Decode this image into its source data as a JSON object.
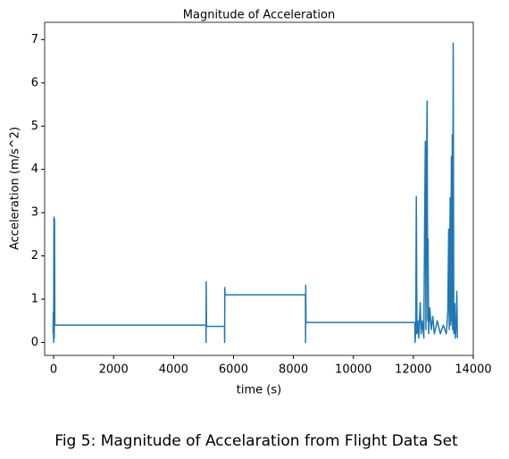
{
  "chart_data": {
    "type": "line",
    "title": "Magnitude of Acceleration",
    "xlabel": "time (s)",
    "ylabel": "Acceleration (m/s^2)",
    "caption": "Fig 5: Magnitude of Accelaration from Flight Data Set",
    "x": [
      -20,
      -10,
      0,
      10,
      20,
      30,
      40,
      5080,
      5085,
      5090,
      5100,
      5700,
      5705,
      5710,
      5720,
      8400,
      8405,
      8410,
      8420,
      12050,
      12060,
      12080,
      12100,
      12120,
      12150,
      12180,
      12230,
      12260,
      12300,
      12350,
      12380,
      12400,
      12420,
      12440,
      12460,
      12480,
      12490,
      12510,
      12550,
      12600,
      12650,
      12700,
      12800,
      12900,
      13000,
      13100,
      13150,
      13180,
      13200,
      13230,
      13250,
      13270,
      13290,
      13300,
      13310,
      13330,
      13350,
      13380,
      13400,
      13430,
      13450,
      13470
    ],
    "series": [
      {
        "color": "#1f77b4",
        "values": [
          0.2,
          0.7,
          0.0,
          2.9,
          0.1,
          2.85,
          0.4,
          0.4,
          0,
          1.4,
          0.37,
          0.37,
          0,
          1.27,
          1.1,
          1.1,
          0,
          1.32,
          0.46,
          0.46,
          0,
          0.3,
          3.37,
          0.2,
          0.5,
          0.1,
          0.92,
          0.2,
          0.5,
          0.1,
          3.0,
          4.65,
          0.3,
          4.0,
          5.58,
          0.5,
          2.4,
          0.2,
          0.8,
          0.3,
          0.6,
          0.2,
          0.5,
          0.2,
          0.4,
          0.2,
          0.7,
          2.62,
          0.3,
          3.35,
          0.4,
          4.3,
          0.5,
          4.8,
          0.3,
          6.92,
          0.2,
          0.9,
          0.1,
          0.4,
          1.18,
          0.1
        ]
      }
    ],
    "xlim": [
      -300,
      14000
    ],
    "ylim": [
      -0.3,
      7.4
    ],
    "xticks": [
      0,
      2000,
      4000,
      6000,
      8000,
      10000,
      12000,
      14000
    ],
    "yticks": [
      0,
      1,
      2,
      3,
      4,
      5,
      6,
      7
    ]
  }
}
